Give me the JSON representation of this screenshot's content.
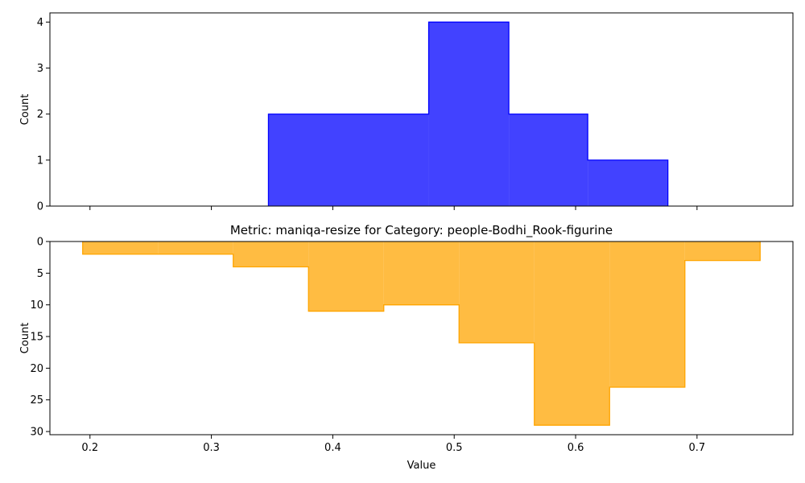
{
  "chart_data": [
    {
      "type": "histogram",
      "title": "",
      "xlabel": "",
      "ylabel": "Count",
      "color": "#0000ff",
      "xlim": [
        0.167,
        0.779
      ],
      "ylim": [
        0,
        4.2
      ],
      "xticks": [
        0.2,
        0.3,
        0.4,
        0.5,
        0.6,
        0.7
      ],
      "yticks": [
        0,
        1,
        2,
        3,
        4
      ],
      "y_inverted": false,
      "show_x_tick_labels": false,
      "bin_edges": [
        0.347,
        0.413,
        0.479,
        0.545,
        0.61,
        0.676
      ],
      "counts": [
        2,
        2,
        4,
        2,
        1
      ]
    },
    {
      "type": "histogram",
      "title": "Metric: maniqa-resize for Category: people-Bodhi_Rook-figurine",
      "xlabel": "Value",
      "ylabel": "Count",
      "color": "#ffa500",
      "xlim": [
        0.167,
        0.779
      ],
      "ylim": [
        0,
        30.5
      ],
      "xticks": [
        0.2,
        0.3,
        0.4,
        0.5,
        0.6,
        0.7
      ],
      "yticks": [
        0,
        5,
        10,
        15,
        20,
        25,
        30
      ],
      "y_inverted": true,
      "show_x_tick_labels": true,
      "bin_edges": [
        0.194,
        0.256,
        0.318,
        0.38,
        0.442,
        0.504,
        0.566,
        0.628,
        0.69,
        0.752
      ],
      "counts": [
        2,
        2,
        4,
        11,
        10,
        16,
        29,
        23,
        3
      ]
    }
  ]
}
